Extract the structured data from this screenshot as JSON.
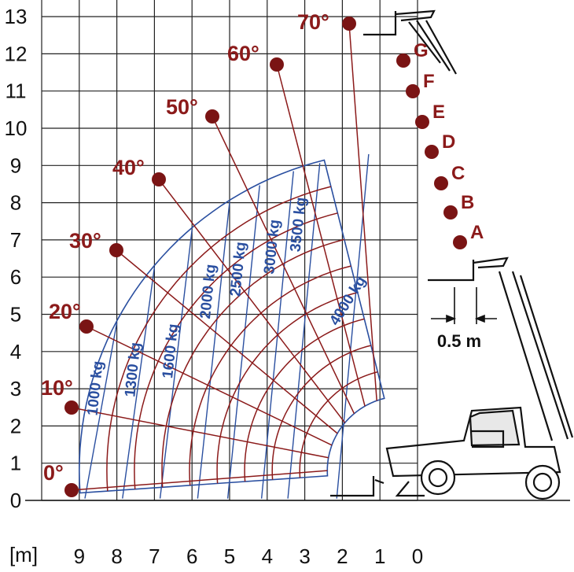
{
  "chart_data": {
    "type": "diagram",
    "xlabel": "[m]",
    "x_ticks": [
      "9",
      "8",
      "7",
      "6",
      "5",
      "4",
      "3",
      "2",
      "1",
      "0"
    ],
    "y_ticks": [
      "0",
      "1",
      "2",
      "3",
      "4",
      "5",
      "6",
      "7",
      "8",
      "9",
      "10",
      "11",
      "12",
      "13"
    ],
    "angles": [
      {
        "label": "0°",
        "deg": 0
      },
      {
        "label": "10°",
        "deg": 10
      },
      {
        "label": "20°",
        "deg": 20
      },
      {
        "label": "30°",
        "deg": 30
      },
      {
        "label": "40°",
        "deg": 40
      },
      {
        "label": "50°",
        "deg": 50
      },
      {
        "label": "60°",
        "deg": 60
      },
      {
        "label": "70°",
        "deg": 70
      }
    ],
    "extensions": [
      "A",
      "B",
      "C",
      "D",
      "E",
      "F",
      "G"
    ],
    "load_zones": [
      {
        "label": "1000 kg",
        "x": 8.6
      },
      {
        "label": "1300 kg",
        "x": 7.6
      },
      {
        "label": "1600 kg",
        "x": 6.6
      },
      {
        "label": "2000 kg",
        "x": 5.6
      },
      {
        "label": "2500 kg",
        "x": 4.8
      },
      {
        "label": "3000 kg",
        "x": 3.9
      },
      {
        "label": "3500 kg",
        "x": 3.2
      },
      {
        "label": "4000 kg",
        "x": 1.9
      }
    ],
    "dimension_label": "0.5 m"
  }
}
